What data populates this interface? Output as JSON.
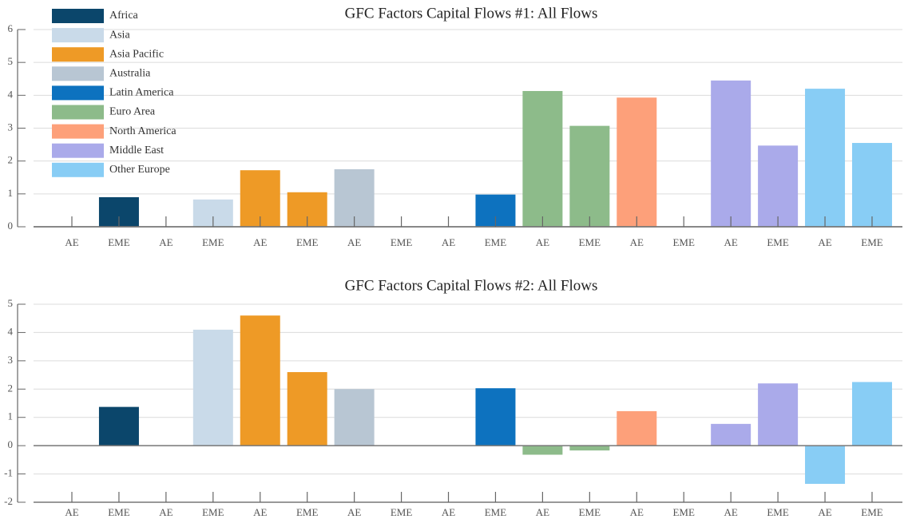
{
  "chart_data": [
    {
      "type": "bar",
      "title": "GFC Factors Capital Flows #1: All Flows",
      "categories": [
        "AE",
        "EME",
        "AE",
        "EME",
        "AE",
        "EME",
        "AE",
        "EME",
        "AE",
        "EME",
        "AE",
        "EME",
        "AE",
        "EME",
        "AE",
        "EME",
        "AE",
        "EME"
      ],
      "series": [
        {
          "name": "Africa",
          "color": "#0b466b",
          "values": [
            0,
            0.9,
            null,
            null,
            null,
            null,
            null,
            null,
            null,
            null,
            null,
            null,
            null,
            null,
            null,
            null,
            null,
            null
          ]
        },
        {
          "name": "Asia",
          "color": "#c9dae9",
          "values": [
            null,
            null,
            0,
            0.83,
            null,
            null,
            null,
            null,
            null,
            null,
            null,
            null,
            null,
            null,
            null,
            null,
            null,
            null
          ]
        },
        {
          "name": "Asia Pacific",
          "color": "#ee9a26",
          "values": [
            null,
            null,
            null,
            null,
            1.72,
            1.05,
            null,
            null,
            null,
            null,
            null,
            null,
            null,
            null,
            null,
            null,
            null,
            null
          ]
        },
        {
          "name": "Australia",
          "color": "#b8c6d3",
          "values": [
            null,
            null,
            null,
            null,
            null,
            null,
            1.75,
            0,
            null,
            null,
            null,
            null,
            null,
            null,
            null,
            null,
            null,
            null
          ]
        },
        {
          "name": "Latin America",
          "color": "#0d72bf",
          "values": [
            null,
            null,
            null,
            null,
            null,
            null,
            null,
            null,
            0,
            0.98,
            null,
            null,
            null,
            null,
            null,
            null,
            null,
            null
          ]
        },
        {
          "name": "Euro Area",
          "color": "#8dbb8a",
          "values": [
            null,
            null,
            null,
            null,
            null,
            null,
            null,
            null,
            null,
            null,
            4.13,
            3.07,
            null,
            null,
            null,
            null,
            null,
            null
          ]
        },
        {
          "name": "North America",
          "color": "#fda07a",
          "values": [
            null,
            null,
            null,
            null,
            null,
            null,
            null,
            null,
            null,
            null,
            null,
            null,
            3.93,
            0,
            null,
            null,
            null,
            null
          ]
        },
        {
          "name": "Middle East",
          "color": "#aaaaea",
          "values": [
            null,
            null,
            null,
            null,
            null,
            null,
            null,
            null,
            null,
            null,
            null,
            null,
            null,
            null,
            4.45,
            2.47,
            null,
            null
          ]
        },
        {
          "name": "Other Europe",
          "color": "#88cdf5",
          "values": [
            null,
            null,
            null,
            null,
            null,
            null,
            null,
            null,
            null,
            null,
            null,
            null,
            null,
            null,
            null,
            null,
            4.2,
            2.55
          ]
        }
      ],
      "ylim": [
        0,
        6
      ],
      "yticks": [
        0,
        1,
        2,
        3,
        4,
        5,
        6
      ],
      "grid": true,
      "legend": "upper left"
    },
    {
      "type": "bar",
      "title": "GFC Factors Capital Flows #2: All Flows",
      "categories": [
        "AE",
        "EME",
        "AE",
        "EME",
        "AE",
        "EME",
        "AE",
        "EME",
        "AE",
        "EME",
        "AE",
        "EME",
        "AE",
        "EME",
        "AE",
        "EME",
        "AE",
        "EME"
      ],
      "series": [
        {
          "color": "#0b466b",
          "values": [
            0,
            1.37,
            null,
            null,
            null,
            null,
            null,
            null,
            null,
            null,
            null,
            null,
            null,
            null,
            null,
            null,
            null,
            null
          ]
        },
        {
          "color": "#c9dae9",
          "values": [
            null,
            null,
            0,
            4.1,
            null,
            null,
            null,
            null,
            null,
            null,
            null,
            null,
            null,
            null,
            null,
            null,
            null,
            null
          ]
        },
        {
          "color": "#ee9a26",
          "values": [
            null,
            null,
            null,
            null,
            4.6,
            2.6,
            null,
            null,
            null,
            null,
            null,
            null,
            null,
            null,
            null,
            null,
            null,
            null
          ]
        },
        {
          "color": "#b8c6d3",
          "values": [
            null,
            null,
            null,
            null,
            null,
            null,
            2.0,
            0,
            null,
            null,
            null,
            null,
            null,
            null,
            null,
            null,
            null,
            null
          ]
        },
        {
          "color": "#0d72bf",
          "values": [
            null,
            null,
            null,
            null,
            null,
            null,
            null,
            null,
            0,
            2.03,
            null,
            null,
            null,
            null,
            null,
            null,
            null,
            null
          ]
        },
        {
          "color": "#8dbb8a",
          "values": [
            null,
            null,
            null,
            null,
            null,
            null,
            null,
            null,
            null,
            null,
            -0.32,
            -0.17,
            null,
            null,
            null,
            null,
            null,
            null
          ]
        },
        {
          "color": "#fda07a",
          "values": [
            null,
            null,
            null,
            null,
            null,
            null,
            null,
            null,
            null,
            null,
            null,
            null,
            1.22,
            0,
            null,
            null,
            null,
            null
          ]
        },
        {
          "color": "#aaaaea",
          "values": [
            null,
            null,
            null,
            null,
            null,
            null,
            null,
            null,
            null,
            null,
            null,
            null,
            null,
            null,
            0.77,
            2.2,
            null,
            null
          ]
        },
        {
          "color": "#88cdf5",
          "values": [
            null,
            null,
            null,
            null,
            null,
            null,
            null,
            null,
            null,
            null,
            null,
            null,
            null,
            null,
            null,
            null,
            -1.35,
            2.25
          ]
        }
      ],
      "ylim": [
        -2,
        5
      ],
      "yticks": [
        -2,
        -1,
        0,
        1,
        2,
        3,
        4,
        5
      ],
      "grid": true
    }
  ]
}
